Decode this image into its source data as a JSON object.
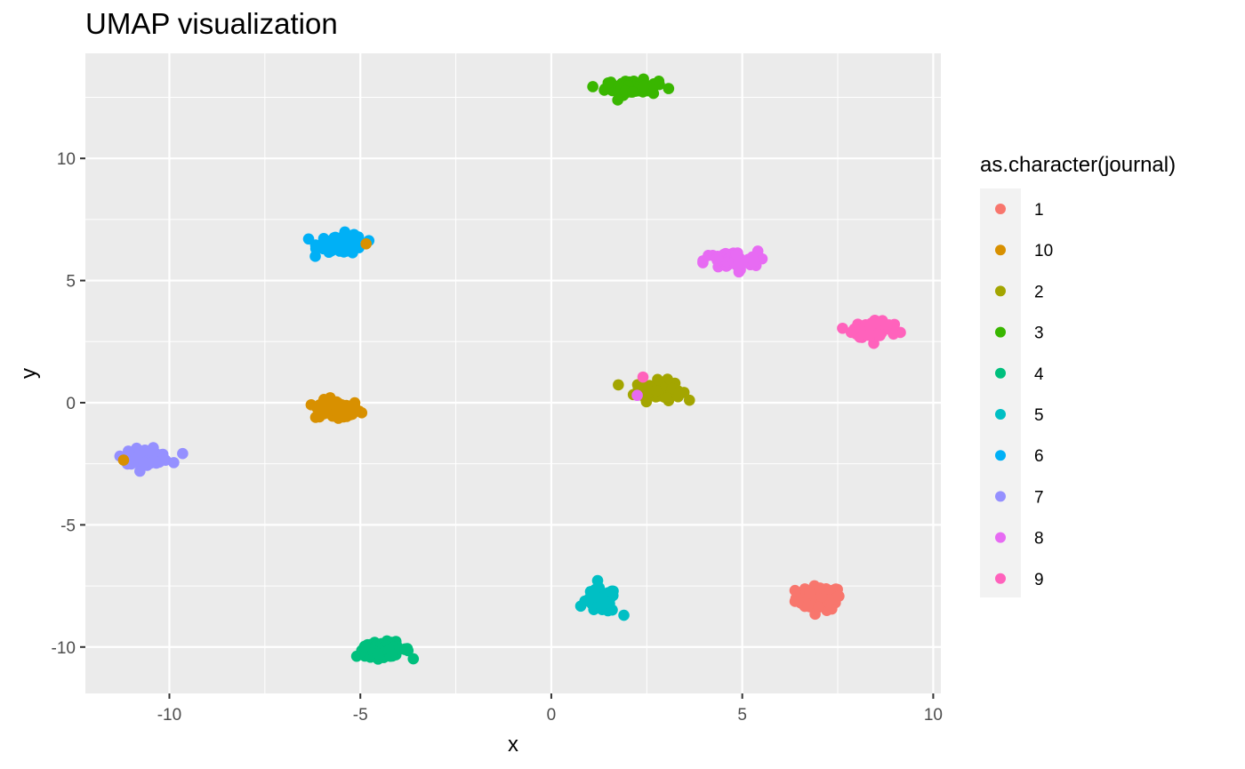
{
  "chart_data": {
    "type": "scatter",
    "title": "UMAP visualization",
    "xlabel": "x",
    "ylabel": "y",
    "xlim": [
      -12.2,
      10.2
    ],
    "ylim": [
      -11.9,
      14.3
    ],
    "x_ticks": [
      -10,
      -5,
      0,
      5,
      10
    ],
    "x_tick_labels": [
      "-10",
      "-5",
      "0",
      "5",
      "10"
    ],
    "y_ticks": [
      -10,
      -5,
      0,
      5,
      10
    ],
    "y_tick_labels": [
      "-10",
      "-5",
      "0",
      "5",
      "10"
    ],
    "grid": true,
    "legend": {
      "title": "as.character(journal)",
      "placement": "right",
      "entries": [
        "1",
        "10",
        "2",
        "3",
        "4",
        "5",
        "6",
        "7",
        "8",
        "9"
      ]
    },
    "colors": {
      "1": "#F8766D",
      "10": "#D89000",
      "2": "#A3A500",
      "3": "#39B600",
      "4": "#00BF7D",
      "5": "#00BFC4",
      "6": "#00B0F6",
      "7": "#9590FF",
      "8": "#E76BF3",
      "9": "#FF62BC"
    },
    "series": [
      {
        "name": "1",
        "center": [
          7.0,
          -8.0
        ],
        "spread": [
          0.3,
          0.25
        ],
        "count": 70
      },
      {
        "name": "10",
        "center": [
          -5.6,
          -0.3
        ],
        "spread": [
          0.3,
          0.2
        ],
        "count": 70,
        "extra_points": [
          [
            -4.85,
            6.5
          ],
          [
            -11.2,
            -2.35
          ]
        ]
      },
      {
        "name": "2",
        "center": [
          2.8,
          0.5
        ],
        "spread": [
          0.3,
          0.2
        ],
        "count": 70
      },
      {
        "name": "3",
        "center": [
          2.1,
          12.9
        ],
        "spread": [
          0.35,
          0.15
        ],
        "count": 70
      },
      {
        "name": "4",
        "center": [
          -4.4,
          -10.1
        ],
        "spread": [
          0.35,
          0.15
        ],
        "count": 70
      },
      {
        "name": "5",
        "center": [
          1.3,
          -8.1
        ],
        "spread": [
          0.2,
          0.25
        ],
        "count": 70,
        "extra_points": [
          [
            1.9,
            -8.7
          ]
        ]
      },
      {
        "name": "6",
        "center": [
          -5.5,
          6.5
        ],
        "spread": [
          0.3,
          0.2
        ],
        "count": 70
      },
      {
        "name": "7",
        "center": [
          -10.6,
          -2.2
        ],
        "spread": [
          0.3,
          0.15
        ],
        "count": 70
      },
      {
        "name": "8",
        "center": [
          4.7,
          5.8
        ],
        "spread": [
          0.35,
          0.2
        ],
        "count": 70,
        "extra_points": [
          [
            2.25,
            0.3
          ]
        ]
      },
      {
        "name": "9",
        "center": [
          8.5,
          3.0
        ],
        "spread": [
          0.3,
          0.2
        ],
        "count": 70,
        "extra_points": [
          [
            2.4,
            1.05
          ]
        ]
      }
    ]
  }
}
